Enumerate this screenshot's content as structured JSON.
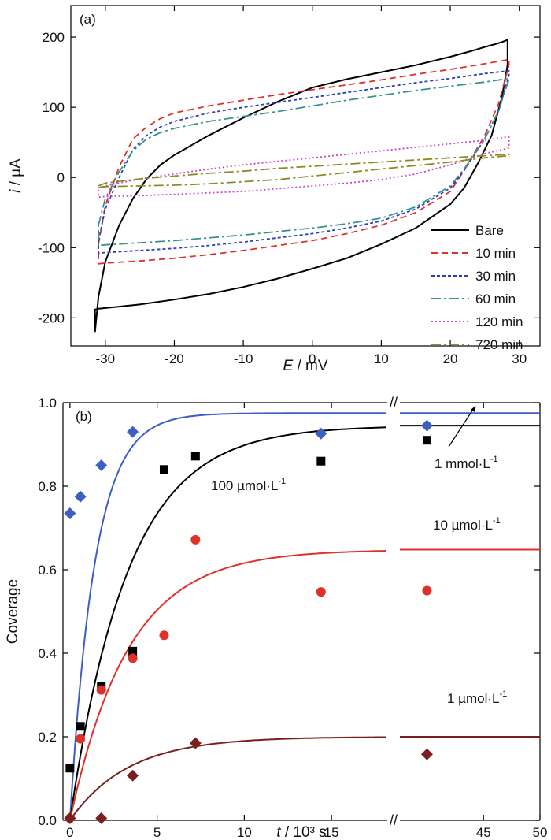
{
  "chart_data": [
    {
      "panel_label": "(a)",
      "type": "line",
      "xlabel_italic": "E",
      "xlabel_rest": " / mV",
      "ylabel_italic": "i",
      "ylabel_rest": " / µA",
      "xlim": [
        -35,
        33
      ],
      "ylim": [
        -240,
        245
      ],
      "xticks": [
        -30,
        -20,
        -10,
        0,
        10,
        20,
        30
      ],
      "yticks": [
        -200,
        -100,
        0,
        100,
        200
      ],
      "x_tick_labels": [
        "-30",
        "-20",
        "-10",
        "0",
        "10",
        "20",
        "30"
      ],
      "y_tick_labels": [
        "-200",
        "-100",
        "0",
        "100",
        "200"
      ],
      "legend_position": "bottom-right",
      "series": [
        {
          "name": "Bare",
          "color": "#000000",
          "dash": "",
          "x": [
            -31.5,
            -31,
            -30,
            -28,
            -26,
            -24,
            -22,
            -20,
            -15,
            -10,
            -5,
            0,
            5,
            10,
            15,
            20,
            23,
            25,
            26.5,
            27.5,
            28.3,
            28.3,
            27.5,
            26,
            24,
            22,
            20,
            15,
            10,
            5,
            0,
            -5,
            -10,
            -15,
            -20,
            -25,
            -28,
            -30,
            -31,
            -31.5
          ],
          "y": [
            -220,
            -170,
            -120,
            -68,
            -30,
            -2,
            18,
            32,
            60,
            85,
            108,
            128,
            140,
            150,
            160,
            172,
            180,
            186,
            190,
            193,
            196,
            160,
            115,
            60,
            20,
            -15,
            -38,
            -72,
            -95,
            -115,
            -130,
            -144,
            -156,
            -166,
            -174,
            -181,
            -184,
            -186,
            -187,
            -188
          ]
        },
        {
          "name": "10 min",
          "color": "#e0302a",
          "dash": "8,5",
          "x": [
            -31,
            -30,
            -28,
            -26,
            -24,
            -22,
            -20,
            -15,
            -10,
            -5,
            0,
            5,
            10,
            15,
            20,
            25,
            28.5,
            28.5,
            27,
            25,
            22,
            20,
            15,
            10,
            5,
            0,
            -5,
            -10,
            -15,
            -20,
            -25,
            -30,
            -31
          ],
          "y": [
            -95,
            -40,
            15,
            55,
            72,
            84,
            92,
            102,
            110,
            118,
            125,
            132,
            139,
            147,
            154,
            162,
            168,
            160,
            105,
            60,
            10,
            -20,
            -50,
            -68,
            -80,
            -90,
            -97,
            -104,
            -110,
            -115,
            -119,
            -122,
            -123
          ]
        },
        {
          "name": "30 min",
          "color": "#2b3fb8",
          "dash": "4,3",
          "x": [
            -31,
            -30,
            -28,
            -26,
            -24,
            -22,
            -20,
            -15,
            -10,
            -5,
            0,
            5,
            10,
            15,
            20,
            25,
            28.5,
            28.5,
            27,
            25,
            22,
            20,
            15,
            10,
            5,
            0,
            -5,
            -10,
            -15,
            -20,
            -25,
            -30,
            -31
          ],
          "y": [
            -90,
            -45,
            0,
            40,
            60,
            72,
            80,
            92,
            100,
            107,
            114,
            121,
            128,
            135,
            141,
            148,
            152,
            145,
            95,
            55,
            10,
            -15,
            -45,
            -62,
            -72,
            -80,
            -86,
            -92,
            -97,
            -101,
            -104,
            -107,
            -108
          ]
        },
        {
          "name": "60 min",
          "color": "#3a9290",
          "dash": "12,4,3,4",
          "x": [
            -31,
            -30,
            -28,
            -26,
            -24,
            -22,
            -20,
            -15,
            -10,
            -5,
            0,
            5,
            10,
            15,
            20,
            25,
            28.5,
            28.5,
            27,
            25,
            22,
            20,
            15,
            10,
            5,
            0,
            -5,
            -10,
            -15,
            -20,
            -25,
            -30,
            -31
          ],
          "y": [
            -68,
            -30,
            8,
            38,
            55,
            64,
            70,
            80,
            87,
            94,
            102,
            110,
            117,
            124,
            130,
            136,
            141,
            140,
            95,
            55,
            12,
            -12,
            -42,
            -58,
            -66,
            -72,
            -77,
            -82,
            -86,
            -90,
            -93,
            -96,
            -97
          ]
        },
        {
          "name": "120 min",
          "color": "#cc44cc",
          "dash": "2,3",
          "x": [
            -31,
            -30,
            -25,
            -20,
            -15,
            -10,
            -5,
            0,
            5,
            10,
            15,
            20,
            25,
            28.5,
            28.5,
            25,
            20,
            15,
            10,
            5,
            0,
            -5,
            -10,
            -15,
            -20,
            -25,
            -30,
            -31
          ],
          "y": [
            -15,
            -12,
            -2,
            5,
            12,
            18,
            23,
            28,
            33,
            38,
            43,
            48,
            53,
            58,
            42,
            34,
            18,
            5,
            -3,
            -8,
            -12,
            -16,
            -20,
            -22,
            -24,
            -26,
            -27,
            -28
          ]
        },
        {
          "name": "720 min",
          "color": "#8c8c24",
          "dash": "12,4,3,4",
          "x": [
            -31,
            -30,
            -25,
            -20,
            -15,
            -10,
            -5,
            0,
            5,
            10,
            15,
            20,
            25,
            28.5,
            28.5,
            25,
            20,
            15,
            10,
            5,
            0,
            -5,
            -10,
            -15,
            -20,
            -25,
            -30,
            -31
          ],
          "y": [
            -12,
            -8,
            -2,
            2,
            6,
            9,
            13,
            16,
            19,
            22,
            25,
            28,
            31,
            33,
            31,
            28,
            22,
            17,
            12,
            7,
            2,
            -3,
            -6,
            -9,
            -11,
            -12,
            -13,
            -14
          ]
        }
      ]
    },
    {
      "panel_label": "(b)",
      "type": "scatter",
      "xlabel_italic": "t",
      "xlabel_rest": " / 10³ s",
      "ylabel": "Coverage",
      "ylim": [
        0,
        1.0
      ],
      "yticks": [
        0.0,
        0.2,
        0.4,
        0.6,
        0.8,
        1.0
      ],
      "y_tick_labels": [
        "0.0",
        "0.2",
        "0.4",
        "0.6",
        "0.8",
        "1.0"
      ],
      "x_break": {
        "left_segment": [
          -0.4,
          18.2
        ],
        "right_segment": [
          37.6,
          50
        ],
        "marker": "//"
      },
      "x_tick_labels": [
        {
          "value": 0,
          "label": "0"
        },
        {
          "value": 5,
          "label": "5"
        },
        {
          "value": 10,
          "label": "10"
        },
        {
          "value": 15,
          "label": "15"
        },
        {
          "value": 45,
          "label": "45"
        },
        {
          "value": 50,
          "label": "50"
        }
      ],
      "series": [
        {
          "name": "1 mmol·L⁻¹",
          "color": "#3d5fc4",
          "marker": "diamond",
          "points": [
            [
              0,
              0.735
            ],
            [
              0.6,
              0.775
            ],
            [
              1.8,
              0.85
            ],
            [
              3.6,
              0.93
            ],
            [
              14.4,
              0.926
            ],
            [
              40,
              0.945
            ]
          ],
          "fit_plateau": 0.975,
          "fit_k": 0.7
        },
        {
          "name": "100 µmol·L⁻¹",
          "color": "#000000",
          "marker": "square",
          "points": [
            [
              0,
              0.125
            ],
            [
              0.6,
              0.225
            ],
            [
              1.8,
              0.32
            ],
            [
              3.6,
              0.405
            ],
            [
              5.4,
              0.84
            ],
            [
              7.2,
              0.872
            ],
            [
              14.4,
              0.86
            ],
            [
              40,
              0.91
            ]
          ],
          "fit_plateau": 0.945,
          "fit_k": 0.3
        },
        {
          "name": "10 µmol·L⁻¹",
          "color": "#e0302a",
          "marker": "circle",
          "points": [
            [
              0,
              0.005
            ],
            [
              0.6,
              0.195
            ],
            [
              1.8,
              0.312
            ],
            [
              3.6,
              0.388
            ],
            [
              5.4,
              0.443
            ],
            [
              7.2,
              0.672
            ],
            [
              14.4,
              0.547
            ],
            [
              40,
              0.55
            ]
          ],
          "fit_plateau": 0.648,
          "fit_k": 0.3
        },
        {
          "name": "1 µmol·L⁻¹",
          "color": "#7a1f1f",
          "marker": "diamond",
          "points": [
            [
              0,
              0.005
            ],
            [
              1.8,
              0.005
            ],
            [
              3.6,
              0.107
            ],
            [
              7.2,
              0.185
            ],
            [
              40,
              0.158
            ]
          ],
          "fit_plateau": 0.2,
          "fit_k": 0.3
        }
      ],
      "annotations": {
        "label_1mmol": {
          "main": "1 mmol·L",
          "sup": "-1"
        },
        "label_100umol": {
          "main": "100 µmol·L",
          "sup": "-1"
        },
        "label_10umol": {
          "main": "10 µmol·L",
          "sup": "-1"
        },
        "label_1umol": {
          "main": "1 µmol·L",
          "sup": "-1"
        }
      }
    }
  ]
}
